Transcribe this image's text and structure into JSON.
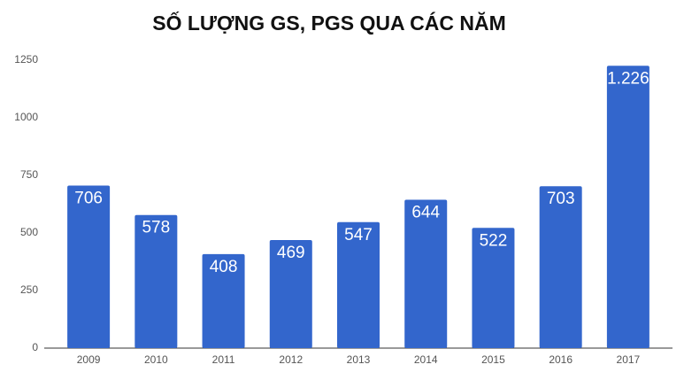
{
  "chart_data": {
    "type": "bar",
    "title": "SỐ LƯỢNG GS, PGS QUA CÁC NĂM",
    "categories": [
      "2009",
      "2010",
      "2011",
      "2012",
      "2013",
      "2014",
      "2015",
      "2016",
      "2017"
    ],
    "values": [
      706,
      578,
      408,
      469,
      547,
      644,
      522,
      703,
      1226
    ],
    "value_labels": [
      "706",
      "578",
      "408",
      "469",
      "547",
      "644",
      "522",
      "703",
      "1.226"
    ],
    "color": "#3366cc",
    "ylim": [
      0,
      1250
    ],
    "yticks": [
      0,
      250,
      500,
      750,
      1000,
      1250
    ],
    "grid": false
  }
}
